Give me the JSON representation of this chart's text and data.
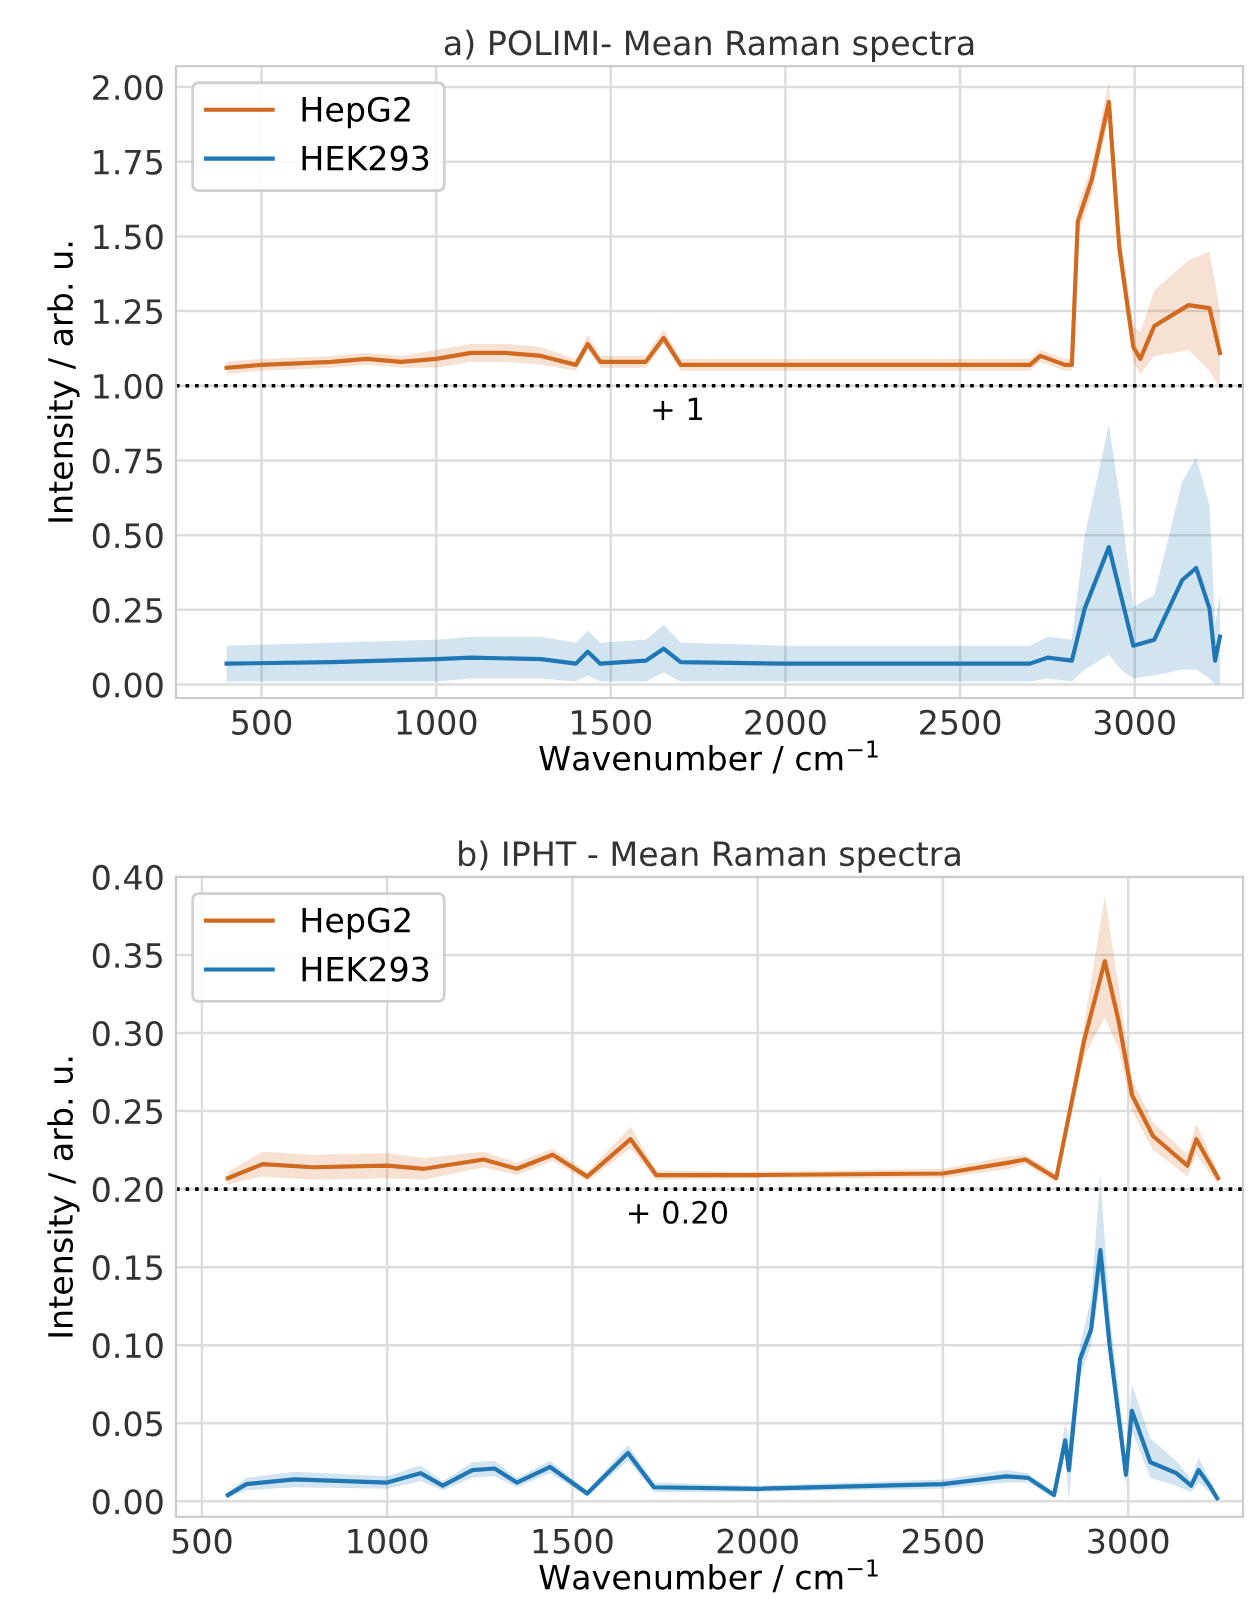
{
  "chart_data": [
    {
      "type": "line",
      "title": "a) POLIMI- Mean Raman spectra",
      "xlabel": "Wavenumber / cm$^{−1}$",
      "ylabel": "Intensity / arb. u.",
      "xlim": [
        255,
        3310
      ],
      "ylim": [
        -0.045,
        2.07
      ],
      "xticks": [
        500,
        1000,
        1500,
        2000,
        2500,
        3000
      ],
      "yticks": [
        {
          "value": 0,
          "label": "0.00"
        },
        {
          "value": 0.25,
          "label": "0.25"
        },
        {
          "value": 0.5,
          "label": "0.50"
        },
        {
          "value": 0.75,
          "label": "0.75"
        },
        {
          "value": 1,
          "label": "1.00"
        },
        {
          "value": 1.25,
          "label": "1.25"
        },
        {
          "value": 1.5,
          "label": "1.50"
        },
        {
          "value": 1.75,
          "label": "1.75"
        },
        {
          "value": 2,
          "label": "2.00"
        }
      ],
      "grid": true,
      "legend": "top left",
      "ref_lines": [
        {
          "axis": "y",
          "value": 1,
          "color": "#000000",
          "line_style": "dotted"
        }
      ],
      "annotations": [
        "+ 1"
      ],
      "series": [
        {
          "name": "HepG2",
          "color": "#d1691f",
          "x": [
            400,
            500,
            700,
            800,
            900,
            1000,
            1100,
            1200,
            1300,
            1400,
            1434,
            1470,
            1600,
            1651,
            1700,
            2000,
            2500,
            2700,
            2730,
            2800,
            2820,
            2837,
            2877,
            2926,
            2956,
            2996,
            3016,
            3056,
            3154,
            3214,
            3244
          ],
          "values": [
            1.06,
            1.07,
            1.08,
            1.09,
            1.08,
            1.09,
            1.11,
            1.11,
            1.1,
            1.07,
            1.14,
            1.08,
            1.08,
            1.16,
            1.07,
            1.07,
            1.07,
            1.07,
            1.1,
            1.07,
            1.07,
            1.55,
            1.69,
            1.95,
            1.46,
            1.13,
            1.09,
            1.2,
            1.27,
            1.26,
            1.11
          ],
          "lower": [
            1.04,
            1.05,
            1.06,
            1.07,
            1.06,
            1.06,
            1.08,
            1.08,
            1.07,
            1.05,
            1.12,
            1.06,
            1.06,
            1.14,
            1.05,
            1.05,
            1.05,
            1.05,
            1.08,
            1.05,
            1.05,
            1.5,
            1.64,
            1.9,
            1.41,
            1.08,
            1.04,
            1.1,
            1.12,
            1.05,
            0.99
          ],
          "upper": [
            1.08,
            1.09,
            1.1,
            1.11,
            1.1,
            1.12,
            1.14,
            1.14,
            1.13,
            1.09,
            1.17,
            1.1,
            1.1,
            1.19,
            1.09,
            1.09,
            1.09,
            1.09,
            1.12,
            1.09,
            1.09,
            1.6,
            1.74,
            2.02,
            1.52,
            1.2,
            1.18,
            1.32,
            1.42,
            1.45,
            1.25
          ]
        },
        {
          "name": "HEK293",
          "color": "#1f77b4",
          "x": [
            400,
            700,
            1000,
            1100,
            1300,
            1400,
            1434,
            1470,
            1600,
            1651,
            1700,
            2000,
            2500,
            2700,
            2750,
            2820,
            2857,
            2926,
            2960,
            2996,
            3056,
            3136,
            3176,
            3214,
            3230,
            3244
          ],
          "values": [
            0.07,
            0.075,
            0.085,
            0.09,
            0.085,
            0.07,
            0.11,
            0.07,
            0.08,
            0.12,
            0.075,
            0.07,
            0.07,
            0.07,
            0.09,
            0.08,
            0.255,
            0.46,
            0.3,
            0.13,
            0.15,
            0.35,
            0.39,
            0.255,
            0.08,
            0.16
          ],
          "lower": [
            0.01,
            0.01,
            0.01,
            0.02,
            0.02,
            0.01,
            0.03,
            0.01,
            0.01,
            0.04,
            0.01,
            0.01,
            0.01,
            0.01,
            0.02,
            0.01,
            0.05,
            0.1,
            0.05,
            0.02,
            0.03,
            0.05,
            0.05,
            0.02,
            0.0,
            0.0
          ],
          "upper": [
            0.13,
            0.14,
            0.15,
            0.16,
            0.16,
            0.14,
            0.18,
            0.14,
            0.15,
            0.2,
            0.14,
            0.13,
            0.13,
            0.13,
            0.16,
            0.15,
            0.5,
            0.87,
            0.6,
            0.26,
            0.3,
            0.68,
            0.76,
            0.6,
            0.2,
            0.3
          ]
        }
      ]
    },
    {
      "type": "line",
      "title": "b) IPHT - Mean Raman spectra",
      "xlabel": "Wavenumber / cm$^{−1}$",
      "ylabel": "Intensity / arb. u.",
      "xlim": [
        430,
        3310
      ],
      "ylim": [
        -0.01,
        0.4
      ],
      "xticks": [
        500,
        1000,
        1500,
        2000,
        2500,
        3000
      ],
      "yticks": [
        {
          "value": 0,
          "label": "0.00"
        },
        {
          "value": 0.05,
          "label": "0.05"
        },
        {
          "value": 0.1,
          "label": "0.10"
        },
        {
          "value": 0.15,
          "label": "0.15"
        },
        {
          "value": 0.2,
          "label": "0.20"
        },
        {
          "value": 0.25,
          "label": "0.25"
        },
        {
          "value": 0.3,
          "label": "0.30"
        },
        {
          "value": 0.35,
          "label": "0.35"
        },
        {
          "value": 0.4,
          "label": "0.40"
        }
      ],
      "grid": true,
      "legend": "top left",
      "ref_lines": [
        {
          "axis": "y",
          "value": 0.2,
          "color": "#000000",
          "line_style": "dotted"
        }
      ],
      "annotations": [
        "+ 0.20"
      ],
      "series": [
        {
          "name": "HepG2",
          "color": "#d1691f",
          "x": [
            570,
            664,
            800,
            1000,
            1100,
            1260,
            1350,
            1447,
            1540,
            1657,
            1726,
            2000,
            2500,
            2677,
            2723,
            2806,
            2881,
            2937,
            2974,
            3011,
            3067,
            3160,
            3184,
            3243
          ],
          "values": [
            0.207,
            0.216,
            0.214,
            0.215,
            0.213,
            0.219,
            0.213,
            0.222,
            0.208,
            0.232,
            0.209,
            0.209,
            0.21,
            0.217,
            0.219,
            0.207,
            0.295,
            0.346,
            0.308,
            0.26,
            0.234,
            0.215,
            0.232,
            0.207
          ],
          "lower": [
            0.203,
            0.208,
            0.206,
            0.207,
            0.206,
            0.214,
            0.209,
            0.218,
            0.205,
            0.226,
            0.206,
            0.207,
            0.207,
            0.213,
            0.216,
            0.204,
            0.285,
            0.31,
            0.29,
            0.25,
            0.225,
            0.208,
            0.222,
            0.203
          ],
          "upper": [
            0.211,
            0.224,
            0.222,
            0.223,
            0.22,
            0.224,
            0.217,
            0.226,
            0.211,
            0.24,
            0.212,
            0.211,
            0.213,
            0.221,
            0.222,
            0.21,
            0.305,
            0.388,
            0.33,
            0.27,
            0.243,
            0.222,
            0.242,
            0.211
          ]
        },
        {
          "name": "HEK293",
          "color": "#1f77b4",
          "x": [
            570,
            620,
            750,
            1000,
            1090,
            1150,
            1230,
            1290,
            1350,
            1440,
            1540,
            1650,
            1720,
            2000,
            2500,
            2670,
            2730,
            2800,
            2830,
            2840,
            2870,
            2900,
            2925,
            2950,
            2994,
            3010,
            3060,
            3130,
            3170,
            3190,
            3220,
            3240
          ],
          "values": [
            0.004,
            0.011,
            0.014,
            0.012,
            0.018,
            0.01,
            0.02,
            0.021,
            0.012,
            0.022,
            0.005,
            0.031,
            0.009,
            0.008,
            0.011,
            0.016,
            0.015,
            0.004,
            0.039,
            0.02,
            0.091,
            0.11,
            0.161,
            0.1,
            0.017,
            0.058,
            0.025,
            0.018,
            0.01,
            0.02,
            0.01,
            0.002
          ],
          "lower": [
            0.002,
            0.007,
            0.009,
            0.008,
            0.013,
            0.007,
            0.015,
            0.016,
            0.009,
            0.018,
            0.003,
            0.026,
            0.006,
            0.006,
            0.008,
            0.012,
            0.012,
            0.002,
            0.03,
            0.0,
            0.08,
            0.1,
            0.14,
            0.09,
            0.01,
            0.045,
            0.015,
            0.01,
            0.006,
            0.012,
            0.006,
            0.0
          ],
          "upper": [
            0.006,
            0.015,
            0.019,
            0.016,
            0.023,
            0.013,
            0.025,
            0.026,
            0.015,
            0.026,
            0.007,
            0.036,
            0.012,
            0.01,
            0.014,
            0.02,
            0.018,
            0.006,
            0.05,
            0.04,
            0.1,
            0.13,
            0.21,
            0.12,
            0.03,
            0.075,
            0.04,
            0.026,
            0.014,
            0.028,
            0.014,
            0.004
          ]
        }
      ]
    }
  ]
}
